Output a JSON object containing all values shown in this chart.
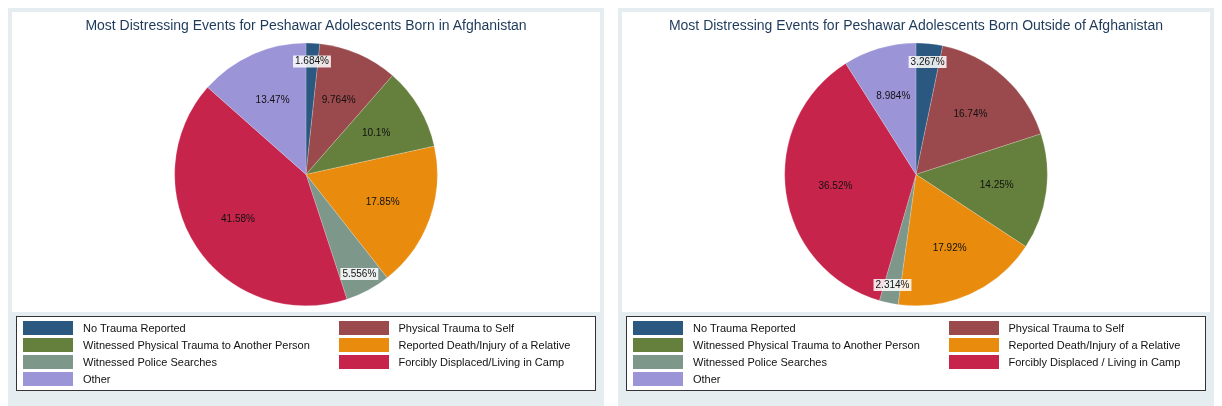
{
  "chart_data": [
    {
      "type": "pie",
      "title": "Most Distressing Events for Peshawar Adolescents Born in Afghanistan",
      "categories": [
        "No Trauma Reported",
        "Physical Trauma to Self",
        "Witnessed Physical Trauma to Another Person",
        "Reported Death/Injury of a Relative",
        "Witnessed Police Searches",
        "Forcibly Displaced/Living in Camp",
        "Other"
      ],
      "values": [
        1.684,
        9.764,
        10.1,
        17.85,
        5.556,
        41.58,
        13.47
      ],
      "colors": [
        "#2a5880",
        "#9a494d",
        "#657f3c",
        "#e98b0c",
        "#7d978a",
        "#c6244a",
        "#9b95d8"
      ],
      "value_labels": [
        "1.684%",
        "9.764%",
        "10.1%",
        "17.85%",
        "5.556%",
        "41.58%",
        "13.47%"
      ],
      "legend": "bottom"
    },
    {
      "type": "pie",
      "title": "Most Distressing Events for Peshawar Adolescents Born Outside of Afghanistan",
      "categories": [
        "No Trauma Reported",
        "Physical Trauma to Self",
        "Witnessed Physical Trauma to Another Person",
        "Reported Death/Injury of a Relative",
        "Witnessed Police Searches",
        "Forcibly Displaced / Living in Camp",
        "Other"
      ],
      "values": [
        3.267,
        16.74,
        14.25,
        17.92,
        2.314,
        36.52,
        8.984
      ],
      "colors": [
        "#2a5880",
        "#9a494d",
        "#657f3c",
        "#e98b0c",
        "#7d978a",
        "#c6244a",
        "#9b95d8"
      ],
      "value_labels": [
        "3.267%",
        "16.74%",
        "14.25%",
        "17.92%",
        "2.314%",
        "36.52%",
        "8.984%"
      ],
      "legend": "bottom"
    }
  ]
}
